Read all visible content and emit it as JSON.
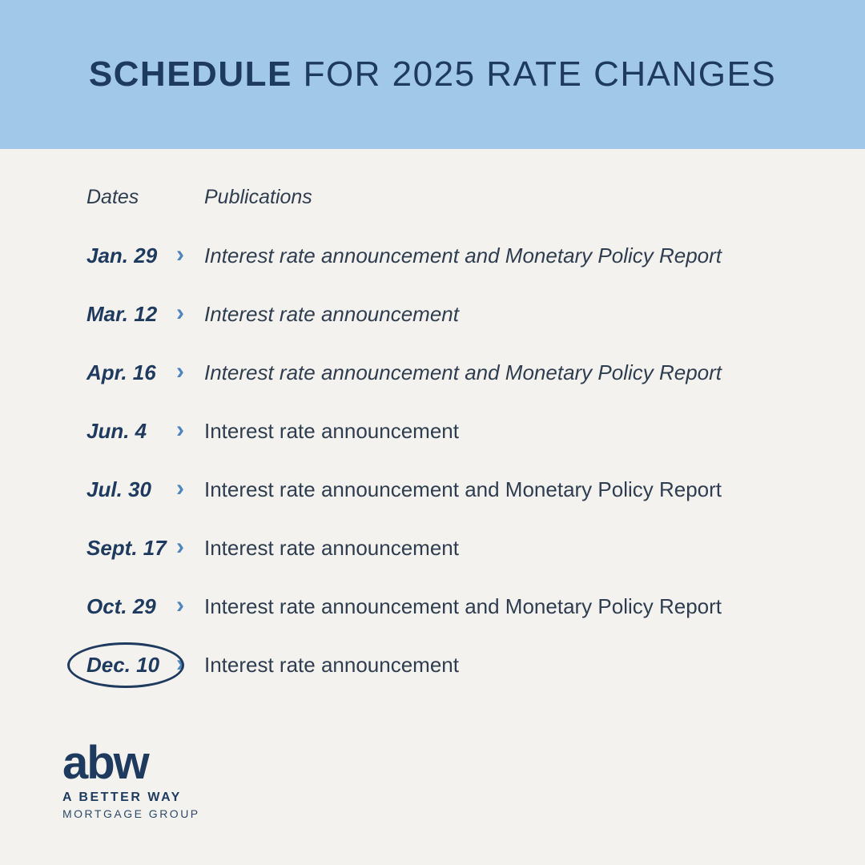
{
  "header": {
    "title_bold": "SCHEDULE",
    "title_rest": " FOR 2025 RATE CHANGES"
  },
  "table": {
    "date_header": "Dates",
    "publication_header": "Publications",
    "rows": [
      {
        "date": "Jan. 29",
        "publication": "Interest rate announcement and Monetary Policy Report",
        "italic": true,
        "circled": false
      },
      {
        "date": "Mar. 12",
        "publication": "Interest rate announcement",
        "italic": true,
        "circled": false
      },
      {
        "date": "Apr. 16",
        "publication": "Interest rate announcement and Monetary Policy Report",
        "italic": true,
        "circled": false
      },
      {
        "date": "Jun. 4",
        "publication": "Interest rate announcement",
        "italic": false,
        "circled": false
      },
      {
        "date": "Jul. 30",
        "publication": "Interest rate announcement and Monetary Policy Report",
        "italic": false,
        "circled": false
      },
      {
        "date": "Sept. 17",
        "publication": "Interest rate announcement",
        "italic": false,
        "circled": false
      },
      {
        "date": "Oct. 29",
        "publication": "Interest rate announcement and Monetary Policy Report",
        "italic": false,
        "circled": false
      },
      {
        "date": "Dec. 10",
        "publication": "Interest rate announcement",
        "italic": false,
        "circled": true
      }
    ]
  },
  "icons": {
    "chevron_right": "›"
  },
  "logo": {
    "abw": "abw",
    "line1": "A BETTER WAY",
    "line2": "MORTGAGE GROUP"
  },
  "colors": {
    "banner_blue": "#a1c8e8",
    "navy": "#1e3a5f",
    "background": "#f4f2ee",
    "chevron_blue": "#4d86bc"
  }
}
